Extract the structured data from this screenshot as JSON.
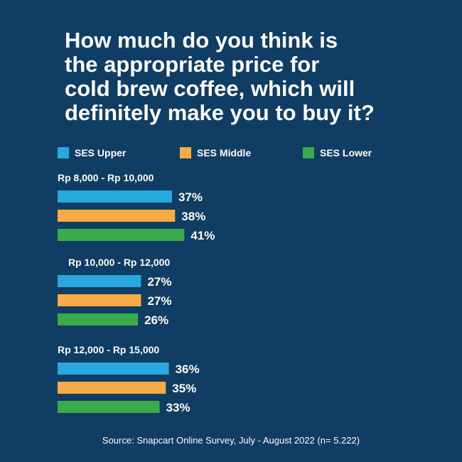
{
  "title": "How much do you think is\nthe appropriate price for\ncold brew coffee, which will\ndefinitely make you to buy it?",
  "source": "Source: Snapcart Online Survey, July - August 2022 (n= 5.222)",
  "colors": {
    "background": "#0f3d63",
    "ses_upper": "#29a8e0",
    "ses_middle": "#f8ab44",
    "ses_lower": "#3aab4a"
  },
  "legend": [
    {
      "label": "SES Upper",
      "color": "#29a8e0"
    },
    {
      "label": "SES Middle",
      "color": "#f8ab44"
    },
    {
      "label": "SES Lower",
      "color": "#3aab4a"
    }
  ],
  "chart_data": {
    "type": "bar",
    "orientation": "horizontal",
    "title": "How much do you think is the appropriate price for cold brew coffee, which will definitely make you to buy it?",
    "categories": [
      "Rp 8,000 - Rp 10,000",
      "Rp 10,000 - Rp 12,000",
      "Rp 12,000 - Rp 15,000"
    ],
    "series": [
      {
        "name": "SES Upper",
        "values": [
          37,
          27,
          36
        ],
        "labels": [
          "37%",
          "27%",
          "36%"
        ]
      },
      {
        "name": "SES Middle",
        "values": [
          38,
          27,
          35
        ],
        "labels": [
          "38%",
          "27%",
          "35%"
        ]
      },
      {
        "name": "SES Lower",
        "values": [
          41,
          26,
          33
        ],
        "labels": [
          "41%",
          "26%",
          "33%"
        ]
      }
    ],
    "unit": "%",
    "legend_position": "top"
  }
}
